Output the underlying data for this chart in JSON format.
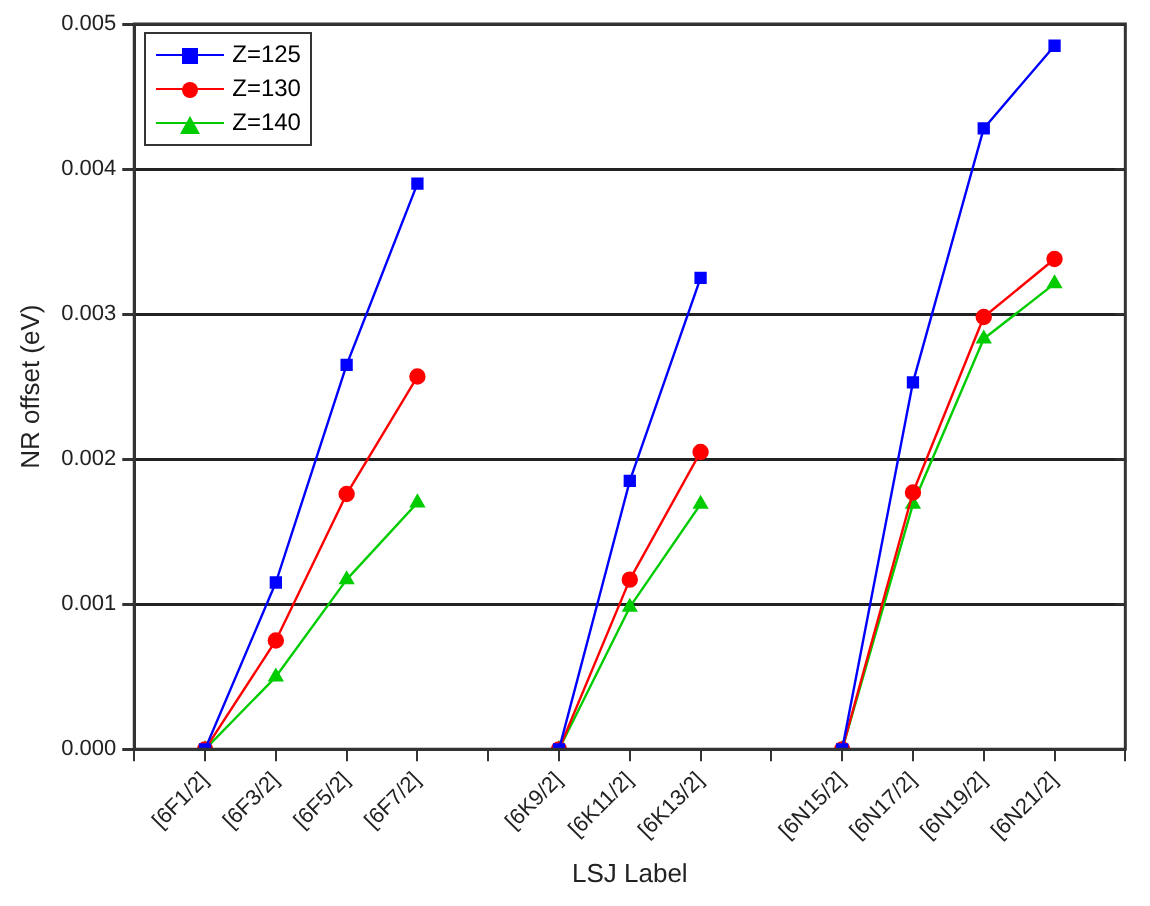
{
  "chart_data": {
    "type": "line",
    "xlabel": "LSJ Label",
    "ylabel": "NR offset (eV)",
    "categories": [
      null,
      "[6F1/2]",
      "[6F3/2]",
      "[6F5/2]",
      "[6F7/2]",
      null,
      "[6K9/2]",
      "[6K11/2]",
      "[6K13/2]",
      null,
      "[6N15/2]",
      "[6N17/2]",
      "[6N19/2]",
      "[6N21/2]",
      null
    ],
    "ylim": [
      0,
      0.005
    ],
    "yticks": [
      {
        "value": 0,
        "label": "0.000"
      },
      {
        "value": 0.001,
        "label": "0.001"
      },
      {
        "value": 0.002,
        "label": "0.002"
      },
      {
        "value": 0.003,
        "label": "0.003"
      },
      {
        "value": 0.004,
        "label": "0.004"
      },
      {
        "value": 0.005,
        "label": "0.005"
      }
    ],
    "grid": "y",
    "legend": "top left",
    "line_style": "solid",
    "series": [
      {
        "name": "Z=125",
        "color": "#0000ff",
        "marker": "square",
        "values": [
          null,
          0,
          0.00115,
          0.00265,
          0.0039,
          null,
          0,
          0.00185,
          0.00325,
          null,
          0,
          0.00253,
          0.00428,
          0.00485,
          null
        ]
      },
      {
        "name": "Z=130",
        "color": "#ff0000",
        "marker": "circle",
        "values": [
          null,
          0,
          0.00075,
          0.00176,
          0.00257,
          null,
          0,
          0.00117,
          0.00205,
          null,
          0,
          0.00177,
          0.00298,
          0.00338,
          null
        ]
      },
      {
        "name": "Z=140",
        "color": "#00cc00",
        "marker": "triangle",
        "values": [
          null,
          0,
          0.0005,
          0.00117,
          0.0017,
          null,
          0,
          0.00098,
          0.00169,
          null,
          0,
          0.00169,
          0.00283,
          0.00321,
          null
        ]
      }
    ]
  }
}
